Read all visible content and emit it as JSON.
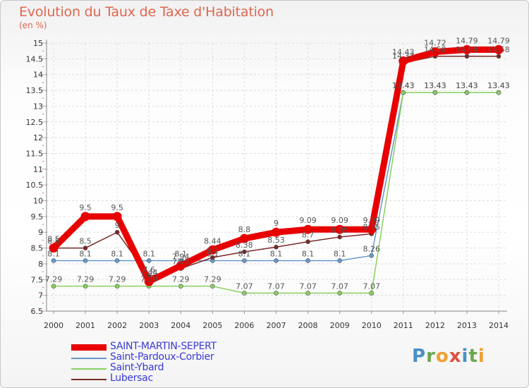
{
  "title": "Evolution du Taux de Taxe d'Habitation",
  "unit": "(en %)",
  "brand": "Proxiti",
  "chart_data": {
    "type": "line",
    "x": [
      2000,
      2001,
      2002,
      2003,
      2004,
      2005,
      2006,
      2007,
      2008,
      2009,
      2010,
      2011,
      2012,
      2013,
      2014
    ],
    "ylim": [
      6.5,
      15
    ],
    "y_ticks": [
      "6.5",
      "7",
      "7.5",
      "8",
      "8.5",
      "9",
      "9.5",
      "10",
      "10.5",
      "11",
      "11.5",
      "12",
      "12.5",
      "13",
      "13.5",
      "14",
      "14.5",
      "15"
    ],
    "x_ticks": [
      "2000",
      "2001",
      "2002",
      "2003",
      "2004",
      "2005",
      "2006",
      "2007",
      "2008",
      "2009",
      "2010",
      "2011",
      "2012",
      "2013",
      "2014"
    ],
    "grid": true,
    "legend_position": "bottom-left",
    "series": [
      {
        "name": "SAINT-MARTIN-SEPERT",
        "color": "#e80000",
        "values": [
          8.5,
          9.5,
          9.5,
          7.44,
          7.94,
          8.44,
          8.8,
          9,
          9.09,
          9.09,
          9.09,
          14.43,
          14.72,
          14.79,
          14.79
        ],
        "labels": [
          "8.5",
          "9.5",
          "9.5",
          "7.44",
          "7.94",
          "8.44",
          "8.8",
          "9",
          "9.09",
          "9.09",
          "9.09",
          "14.43",
          "14.72",
          "14.79",
          "14.79"
        ]
      },
      {
        "name": "Saint-Pardoux-Corbier",
        "color": "#6699cc",
        "values": [
          8.1,
          8.1,
          8.1,
          8.1,
          8.1,
          8.1,
          8.1,
          8.1,
          8.1,
          8.1,
          8.26,
          13.43,
          13.43,
          13.43,
          13.43
        ],
        "labels": [
          "8.1",
          "8.1",
          "8.1",
          "8.1",
          "8.1",
          "8.1",
          "8.1",
          "8.1",
          "8.1",
          "8.1",
          "8.26",
          "13.43",
          "13.43",
          "13.43",
          "13.43"
        ]
      },
      {
        "name": "Saint-Ybard",
        "color": "#88d060",
        "values": [
          7.29,
          7.29,
          7.29,
          7.29,
          7.29,
          7.29,
          7.07,
          7.07,
          7.07,
          7.07,
          7.07,
          13.43,
          13.43,
          13.43,
          13.43
        ],
        "labels": [
          "7.29",
          "7.29",
          "7.29",
          "7.29",
          "7.29",
          "7.29",
          "7.07",
          "7.07",
          "7.07",
          "7.07",
          "7.07",
          "13.43",
          "13.43",
          "13.43",
          "13.43"
        ]
      },
      {
        "name": "Lubersac",
        "color": "#7a2828",
        "values": [
          8.5,
          8.5,
          9,
          7.6,
          7.85,
          8.2,
          8.38,
          8.53,
          8.7,
          8.85,
          8.95,
          14.37,
          14.58,
          14.58,
          14.58
        ],
        "labels": [
          "8.5",
          "8.5",
          "9",
          "7.6",
          "7.85",
          "8.2",
          "8.38",
          "8.53",
          "8.7",
          "8.85",
          "8.95",
          "14.37",
          "14.58",
          "14.58",
          "14.58"
        ]
      }
    ]
  }
}
